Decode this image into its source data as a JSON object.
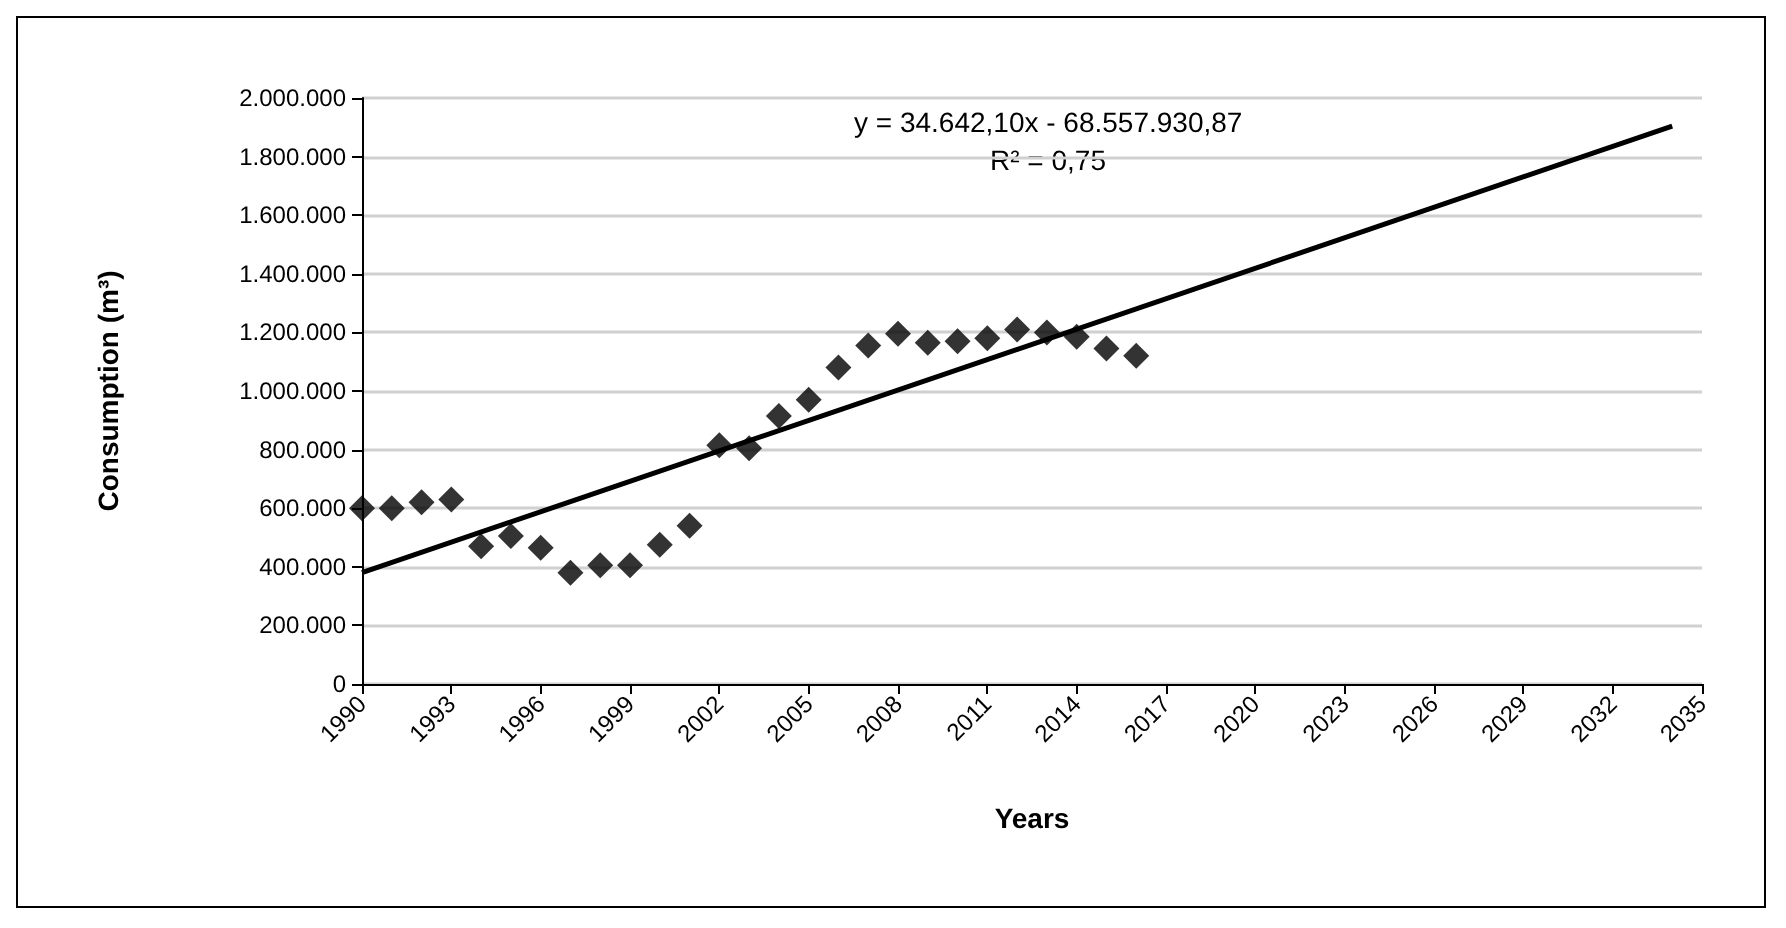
{
  "chart_data": {
    "type": "scatter",
    "xlabel": "Years",
    "ylabel": "Consumption (m³)",
    "xlim": [
      1990,
      2035
    ],
    "xticks": [
      1990,
      1993,
      1996,
      1999,
      2002,
      2005,
      2008,
      2011,
      2014,
      2017,
      2020,
      2023,
      2026,
      2029,
      2032,
      2035
    ],
    "ylim": [
      0,
      2000000
    ],
    "yticks": [
      {
        "value": 0,
        "label": "0"
      },
      {
        "value": 200000,
        "label": "200.000"
      },
      {
        "value": 400000,
        "label": "400.000"
      },
      {
        "value": 600000,
        "label": "600.000"
      },
      {
        "value": 800000,
        "label": "800.000"
      },
      {
        "value": 1000000,
        "label": "1.000.000"
      },
      {
        "value": 1200000,
        "label": "1.200.000"
      },
      {
        "value": 1400000,
        "label": "1.400.000"
      },
      {
        "value": 1600000,
        "label": "1.600.000"
      },
      {
        "value": 1800000,
        "label": "1.800.000"
      },
      {
        "value": 2000000,
        "label": "2.000.000"
      }
    ],
    "grid": "y",
    "marker": "diamond",
    "series": [
      {
        "color": "#000000",
        "x": [
          1990,
          1991,
          1992,
          1993,
          1994,
          1995,
          1996,
          1997,
          1998,
          1999,
          2000,
          2001,
          2002,
          2003,
          2004,
          2005,
          2006,
          2007,
          2008,
          2009,
          2010,
          2011,
          2012,
          2013,
          2014,
          2015,
          2016
        ],
        "values": [
          600000,
          600000,
          620000,
          630000,
          470000,
          505000,
          465000,
          380000,
          405000,
          405000,
          475000,
          540000,
          815000,
          805000,
          915000,
          970000,
          1080000,
          1155000,
          1195000,
          1165000,
          1170000,
          1180000,
          1210000,
          1200000,
          1185000,
          1145000,
          1120000
        ]
      },
      {
        "type": "line",
        "color": "#000000",
        "line_style": "solid",
        "marker": "none",
        "x": [
          1990,
          2034
        ],
        "values": [
          380000,
          1904000
        ]
      }
    ],
    "annotations": [
      "y = 34.642,10x - 68.557.930,87",
      "R² = 0,75"
    ]
  }
}
